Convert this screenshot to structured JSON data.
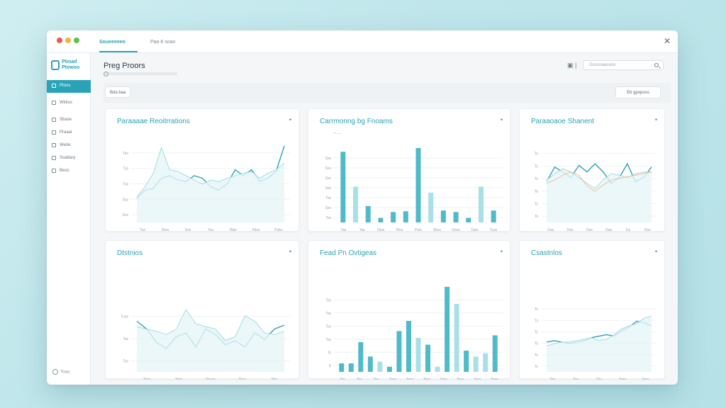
{
  "colors": {
    "accent": "#2aa3b8",
    "accent_light": "#8fd6df",
    "orange": "#f0b27a",
    "background": "#c7e9ee"
  },
  "window": {
    "tabs": [
      {
        "label": "Soueeeeeo"
      },
      {
        "label": "Paa 8 soao"
      }
    ],
    "close_icon": "close-icon"
  },
  "sidebar": {
    "logo_text": "Ptioad Ptowoo",
    "items": [
      {
        "label": "Ptous",
        "active": true
      },
      {
        "label": "Wkitus"
      },
      {
        "label": "Sbase"
      },
      {
        "label": "Praaal"
      },
      {
        "label": "Wede"
      },
      {
        "label": "Soattary"
      },
      {
        "label": "Beos"
      }
    ],
    "footer": "Toaa"
  },
  "header": {
    "title": "Preg Proors",
    "search_placeholder": "Gcocoaaoano",
    "filter_chip": "Bda baa",
    "export_label": "Eb gpoposs"
  },
  "cards": [
    {
      "title": "Paraaaae Reoitrrations",
      "title_color": "#2aa3b8"
    },
    {
      "title": "Carrmonng bg Fnoams",
      "title_color": "#2aa3b8"
    },
    {
      "title": "Paraaoaoe Shanent",
      "title_color": "#2aa3b8"
    },
    {
      "title": "Dtstnios",
      "title_color": "#2aa3b8"
    },
    {
      "title": "Fead Pn Ovtigeas",
      "title_color": "#2aa3b8"
    },
    {
      "title": "Csastnlos",
      "title_color": "#2aa3b8"
    }
  ],
  "chart_data": [
    {
      "type": "line",
      "title": "Paraaaae Reoitrrations",
      "y_ticks": [
        "Tso",
        "Tss",
        "Tos",
        "Sss",
        "Sos"
      ],
      "x_ticks": [
        "Tuo",
        "Woa",
        "Soa",
        "Tuu",
        "Wao",
        "Fbss",
        "Pubs"
      ],
      "series": [
        {
          "values": [
            28,
            38,
            40,
            52,
            55,
            50,
            48,
            55,
            52,
            42,
            38,
            45,
            62,
            55,
            62,
            48,
            52,
            60,
            90
          ]
        },
        {
          "values": [
            30,
            42,
            58,
            88,
            62,
            60,
            55,
            50,
            45,
            50,
            48,
            52,
            55,
            58,
            60,
            52,
            58,
            62,
            70
          ]
        }
      ],
      "ylim": [
        0,
        100
      ]
    },
    {
      "type": "bar",
      "title": "Carrmonng bg Fnoams",
      "legend": "• —",
      "y_ticks": [
        "Sss",
        "Sss",
        "Sss",
        "Sss",
        "Tos",
        "Sss",
        "Tss"
      ],
      "x_ticks": [
        "Taa",
        "Taa",
        "Otus",
        "Pios",
        "Puts",
        "Sbss",
        "Ooss",
        "Tass",
        "Tuss"
      ],
      "bar_values": [
        95,
        48,
        22,
        6,
        14,
        15,
        100,
        40,
        16,
        14,
        6,
        48,
        16
      ],
      "bar_shades": [
        1,
        0,
        1,
        1,
        1,
        1,
        1,
        0,
        1,
        1,
        1,
        0,
        1
      ],
      "ghost_values": [
        60,
        0,
        0,
        0,
        0,
        0,
        0,
        40,
        0,
        0,
        0,
        30,
        0
      ],
      "ylim": [
        0,
        100
      ]
    },
    {
      "type": "line",
      "title": "Paraaoaoe Shanent",
      "y_ticks": [
        "Ts",
        "Ts",
        "Ts",
        "Ts",
        "Ts",
        "Ts"
      ],
      "x_ticks": [
        "Das",
        "Das",
        "Das",
        "Das",
        "Gs",
        "Das"
      ],
      "series": [
        {
          "values": [
            50,
            68,
            62,
            55,
            70,
            62,
            72,
            62,
            48,
            55,
            72,
            50,
            55,
            68
          ]
        },
        {
          "values": [
            52,
            60,
            66,
            62,
            55,
            48,
            42,
            52,
            60,
            58,
            55,
            60,
            62,
            62
          ]
        },
        {
          "values": [
            48,
            52,
            58,
            62,
            58,
            45,
            38,
            46,
            52,
            54,
            56,
            58,
            60,
            62
          ]
        }
      ],
      "ylim": [
        0,
        100
      ]
    },
    {
      "type": "line",
      "title": "Dtstnios",
      "y_ticks": [
        "Tuss",
        "Tss",
        "Tss"
      ],
      "x_ticks": [
        "Tbss",
        "Tbss",
        "Tbuss",
        "Tbss",
        "Tbs"
      ],
      "series": [
        {
          "values": [
            65,
            55,
            38,
            30,
            45,
            50,
            32,
            55,
            48,
            35,
            40,
            32,
            50,
            42,
            55,
            60
          ]
        },
        {
          "values": [
            58,
            55,
            52,
            48,
            55,
            80,
            62,
            58,
            55,
            40,
            45,
            72,
            65,
            50,
            48,
            52
          ]
        }
      ],
      "ylim": [
        0,
        100
      ]
    },
    {
      "type": "bar",
      "title": "Fead Pn Ovtigeas",
      "y_ticks": [
        "Tss",
        "Tss",
        "Tss",
        "Tss",
        "Ts",
        "S"
      ],
      "x_ticks": [
        "Tss",
        "Tes",
        "Tss",
        "Tess",
        "Tess",
        "Toss",
        "Tass",
        "Taus",
        "Tass",
        "Tass"
      ],
      "bar_values": [
        10,
        10,
        35,
        18,
        12,
        6,
        48,
        60,
        40,
        32,
        6,
        100,
        80,
        25,
        18,
        22,
        43
      ],
      "bar_shades": [
        1,
        1,
        1,
        1,
        0,
        1,
        1,
        1,
        0,
        1,
        0,
        1,
        0,
        1,
        0,
        0,
        1
      ],
      "ylim": [
        0,
        100
      ]
    },
    {
      "type": "line",
      "title": "Csastnlos",
      "y_ticks": [
        "Ts",
        "Ts",
        "Ts",
        "Ts",
        "Ts",
        "Ts"
      ],
      "x_ticks": [
        "Tas",
        "Tas",
        "Tas",
        "Tass",
        "Tass"
      ],
      "series": [
        {
          "values": [
            40,
            42,
            40,
            38,
            40,
            42,
            46,
            48,
            50,
            48,
            55,
            60,
            68,
            66,
            62
          ]
        },
        {
          "values": [
            35,
            38,
            40,
            40,
            42,
            44,
            46,
            42,
            44,
            50,
            58,
            62,
            65,
            72,
            75
          ]
        }
      ],
      "ylim": [
        0,
        100
      ]
    }
  ]
}
